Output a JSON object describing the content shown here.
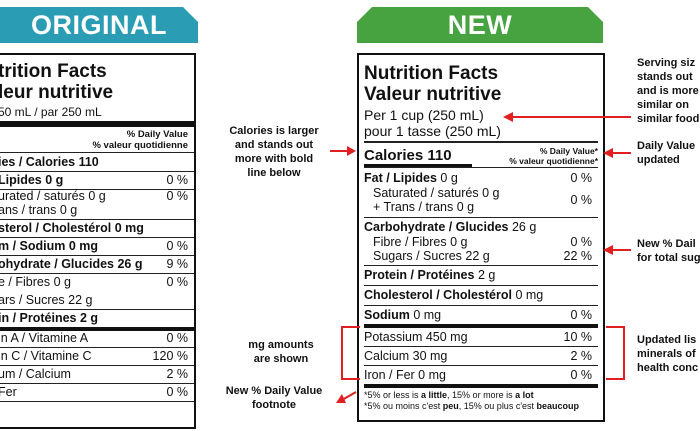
{
  "banners": {
    "original": "ORIGINAL",
    "new": "NEW"
  },
  "original": {
    "title1": "trition Facts",
    "title2": "leur nutritive",
    "serving": "50 mL  / par 250 mL",
    "dv_header_1": "% Daily Value",
    "dv_header_2": "% valeur quotidienne",
    "rows": [
      {
        "label": "ies / Calories 110",
        "value": ""
      },
      {
        "label": "Lipides 0 g",
        "value": "0 %"
      },
      {
        "label": "urated / saturés 0 g",
        "value": "0 %"
      },
      {
        "label": "ans / trans 0 g",
        "value": ""
      },
      {
        "label": "sterol / Cholestérol 0 mg",
        "value": ""
      },
      {
        "label": "m / Sodium 0 mg",
        "value": "0 %"
      },
      {
        "label": "ohydrate / Glucides 26 g",
        "value": "9 %"
      },
      {
        "label": "e / Fibres 0 g",
        "value": "0 %"
      },
      {
        "label": "ars / Sucres 22 g",
        "value": ""
      },
      {
        "label": "in / Protéines 2 g",
        "value": ""
      },
      {
        "label": "in A / Vitamine A",
        "value": "0 %"
      },
      {
        "label": "in C / Vitamine C",
        "value": "120 %"
      },
      {
        "label": "um / Calcium",
        "value": "2 %"
      },
      {
        "label": "Fer",
        "value": "0 %"
      }
    ]
  },
  "new": {
    "title1": "Nutrition Facts",
    "title2": "Valeur nutritive",
    "serving1": "Per 1 cup (250 mL)",
    "serving2": "pour 1 tasse (250 mL)",
    "calories": "Calories 110",
    "dv_header_1": "% Daily Value*",
    "dv_header_2": "% valeur quotidienne*",
    "fat": {
      "label": "Fat / Lipides",
      "amount": "0 g",
      "value": "0 %"
    },
    "saturated": "Saturated / saturés 0 g",
    "trans": "+ Trans / trans 0 g",
    "sat_trans_value": "0 %",
    "carb": {
      "label": "Carbohydrate / Glucides",
      "amount": "26 g"
    },
    "fibre": {
      "label": "Fibre / Fibres 0 g",
      "value": "0 %"
    },
    "sugars": {
      "label": "Sugars / Sucres 22 g",
      "value": "22 %"
    },
    "protein": {
      "label": "Protein / Protéines",
      "amount": "2 g"
    },
    "cholesterol": {
      "label": "Cholesterol / Cholestérol",
      "amount": "0 mg"
    },
    "sodium": {
      "label": "Sodium",
      "amount": "0 mg",
      "value": "0 %"
    },
    "potassium": {
      "label": "Potassium 450 mg",
      "value": "10 %"
    },
    "calcium": {
      "label": "Calcium 30 mg",
      "value": "2 %"
    },
    "iron": {
      "label": "Iron / Fer 0 mg",
      "value": "0 %"
    },
    "foot1_a": "*5% or less is ",
    "foot1_b": "a little",
    "foot1_c": ", 15% or more is ",
    "foot1_d": "a lot",
    "foot2_a": "*5% ou moins c'est ",
    "foot2_b": "peu",
    "foot2_c": ", 15% ou plus c'est ",
    "foot2_d": "beaucoup"
  },
  "annotations": {
    "calories": [
      "Calories is larger",
      "and stands out",
      "more with bold",
      "line below"
    ],
    "mg": [
      "mg amounts",
      "are shown"
    ],
    "footnote": [
      "New % Daily Value",
      "footnote"
    ],
    "serving": [
      "Serving siz",
      "stands out",
      "and is more",
      "similar on",
      "similar food"
    ],
    "dv": [
      "Daily Value",
      "updated"
    ],
    "sugar": [
      "New % Dail",
      "for total sug"
    ],
    "minerals": [
      "Updated lis",
      "minerals of",
      "health conc"
    ]
  },
  "colors": {
    "original_banner": "#2a9db4",
    "new_banner": "#46a340",
    "arrow": "#e02020"
  }
}
